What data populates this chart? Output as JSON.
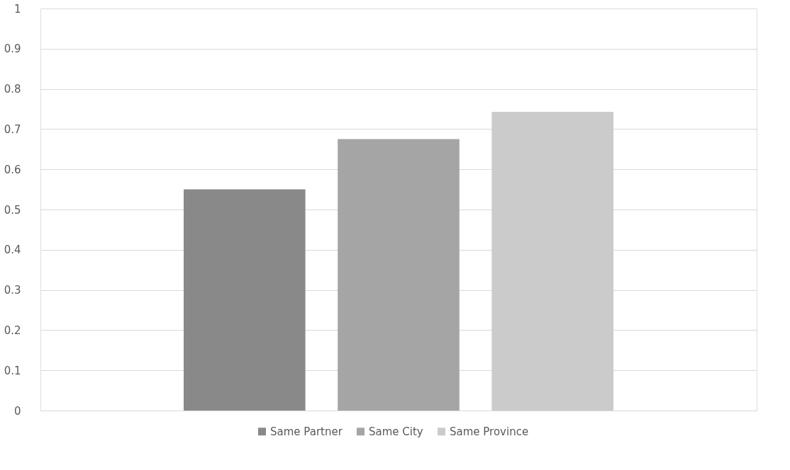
{
  "chart_data": {
    "type": "bar",
    "categories": [
      null
    ],
    "series": [
      {
        "name": "Same Partner",
        "color": "#898989",
        "values": [
          0.55
        ]
      },
      {
        "name": "Same City",
        "color": "#a5a5a5",
        "values": [
          0.675
        ]
      },
      {
        "name": "Same Province",
        "color": "#cbcbcb",
        "values": [
          0.743
        ]
      }
    ],
    "ylim": [
      0,
      1
    ],
    "yticks": [
      0,
      0.1,
      0.2,
      0.3,
      0.4,
      0.5,
      0.6,
      0.7,
      0.8,
      0.9,
      1
    ],
    "grid": "y",
    "legend": "bottom"
  }
}
